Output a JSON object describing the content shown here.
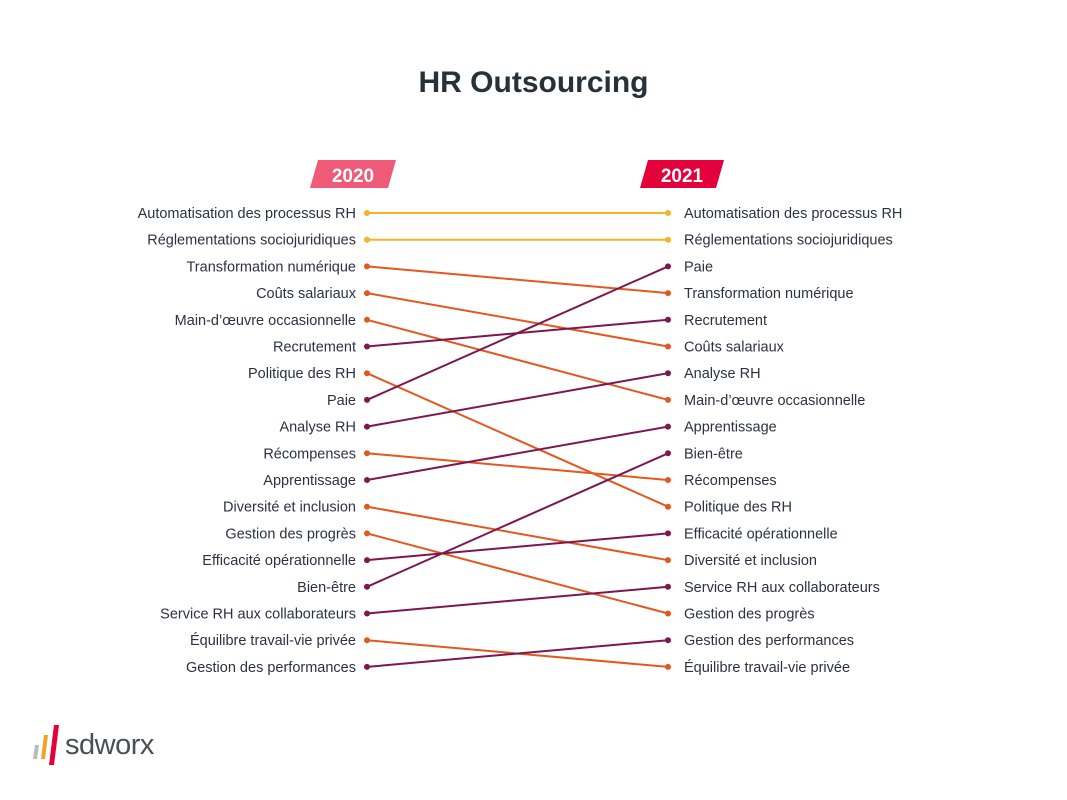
{
  "chart_data": {
    "type": "slope",
    "title": "HR Outsourcing",
    "left_year": "2020",
    "right_year": "2021",
    "left_year_color": "#ee5a78",
    "right_year_color": "#e4003a",
    "left_labels": [
      "Automatisation des processus RH",
      "Réglementations sociojuridiques",
      "Transformation numérique",
      "Coûts salariaux",
      "Main-d’œuvre occasionnelle",
      "Recrutement",
      "Politique des RH",
      "Paie",
      "Analyse RH",
      "Récompenses",
      "Apprentissage",
      "Diversité et inclusion",
      "Gestion des progrès",
      "Efficacité opérationnelle",
      "Bien-être",
      "Service RH aux collaborateurs",
      "Équilibre travail-vie privée",
      "Gestion des performances"
    ],
    "right_labels": [
      "Automatisation des processus RH",
      "Réglementations sociojuridiques",
      "Paie",
      "Transformation numérique",
      "Recrutement",
      "Coûts salariaux",
      "Analyse RH",
      "Main-d’œuvre occasionnelle",
      "Apprentissage",
      "Bien-être",
      "Récompenses",
      "Politique des RH",
      "Efficacité opérationnelle",
      "Diversité et inclusion",
      "Service RH aux collaborateurs",
      "Gestion des progrès",
      "Gestion des performances",
      "Équilibre travail-vie privée"
    ],
    "series": [
      {
        "rank_2020": 1,
        "rank_2021": 1,
        "trend": "same"
      },
      {
        "rank_2020": 2,
        "rank_2021": 2,
        "trend": "same"
      },
      {
        "rank_2020": 3,
        "rank_2021": 4,
        "trend": "down"
      },
      {
        "rank_2020": 4,
        "rank_2021": 6,
        "trend": "down"
      },
      {
        "rank_2020": 5,
        "rank_2021": 8,
        "trend": "down"
      },
      {
        "rank_2020": 6,
        "rank_2021": 5,
        "trend": "up"
      },
      {
        "rank_2020": 7,
        "rank_2021": 12,
        "trend": "down"
      },
      {
        "rank_2020": 8,
        "rank_2021": 3,
        "trend": "up"
      },
      {
        "rank_2020": 9,
        "rank_2021": 7,
        "trend": "up"
      },
      {
        "rank_2020": 10,
        "rank_2021": 11,
        "trend": "down"
      },
      {
        "rank_2020": 11,
        "rank_2021": 9,
        "trend": "up"
      },
      {
        "rank_2020": 12,
        "rank_2021": 14,
        "trend": "down"
      },
      {
        "rank_2020": 13,
        "rank_2021": 16,
        "trend": "down"
      },
      {
        "rank_2020": 14,
        "rank_2021": 13,
        "trend": "up"
      },
      {
        "rank_2020": 15,
        "rank_2021": 10,
        "trend": "up"
      },
      {
        "rank_2020": 16,
        "rank_2021": 15,
        "trend": "up"
      },
      {
        "rank_2020": 17,
        "rank_2021": 18,
        "trend": "down"
      },
      {
        "rank_2020": 18,
        "rank_2021": 17,
        "trend": "up"
      }
    ],
    "trend_colors": {
      "same": "#f5b325",
      "down": "#e4571f",
      "up": "#7e1650"
    }
  },
  "logo": {
    "text": "sdworx",
    "stripe_colors": [
      "#b7b9bd",
      "#f0a22a",
      "#e4003a"
    ]
  }
}
